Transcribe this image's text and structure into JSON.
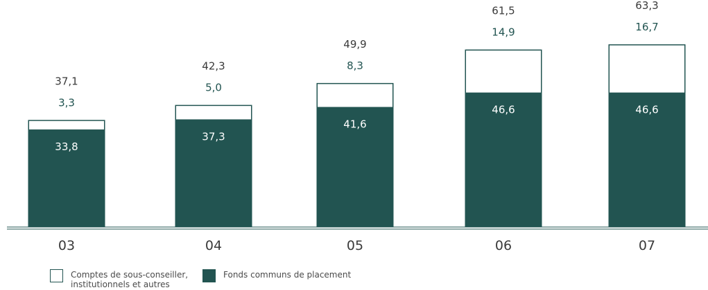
{
  "colors": {
    "primary": "#225451",
    "text": "#3a3a3a",
    "outline": "#225451"
  },
  "chart_data": {
    "type": "bar",
    "stacked": true,
    "categories": [
      "03",
      "04",
      "05",
      "06",
      "07"
    ],
    "series": [
      {
        "name": "Fonds communs de placement",
        "values": [
          33.8,
          37.3,
          41.6,
          46.6,
          46.6
        ],
        "labels": [
          "33,8",
          "37,3",
          "41,6",
          "46,6",
          "46,6"
        ]
      },
      {
        "name": "Comptes de sous-conseiller, institutionnels et autres",
        "values": [
          3.3,
          5.0,
          8.3,
          14.9,
          16.7
        ],
        "labels": [
          "3,3",
          "5,0",
          "8,3",
          "14,9",
          "16,7"
        ]
      }
    ],
    "totals": [
      37.1,
      42.3,
      49.9,
      61.5,
      63.3
    ],
    "total_labels": [
      "37,1",
      "42,3",
      "49,9",
      "61,5",
      "63,3"
    ],
    "title": "",
    "xlabel": "",
    "ylabel": "",
    "ylim": [
      0,
      70
    ],
    "grid": false
  },
  "legend": {
    "outline_label_line1": "Comptes de sous-conseiller,",
    "outline_label_line2": "institutionnels et autres",
    "filled_label": "Fonds communs de placement"
  }
}
